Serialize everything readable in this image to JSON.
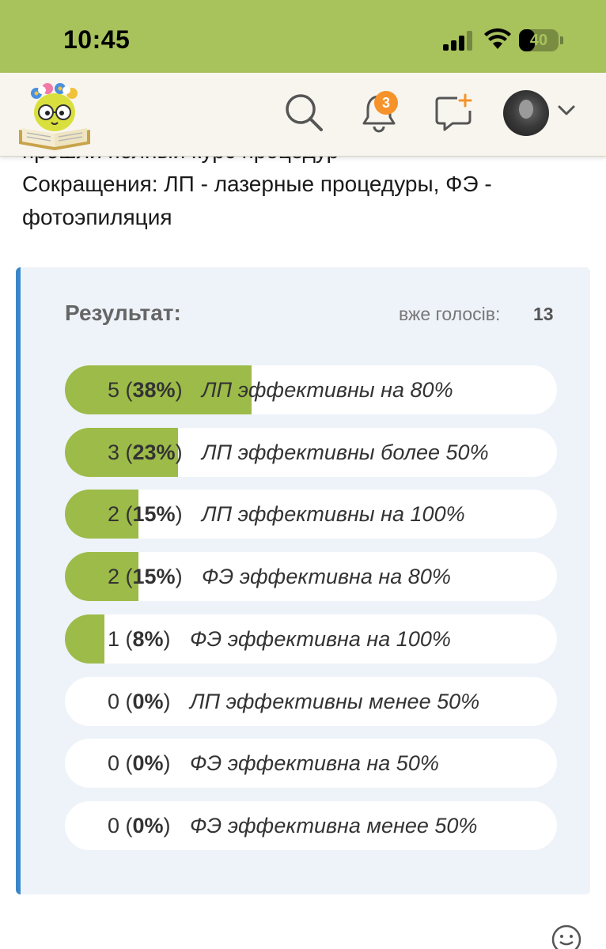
{
  "status_bar": {
    "time": "10:45",
    "battery": "40",
    "battery_level": 0.4
  },
  "nav": {
    "logo": "site-logo-owl-reading-book",
    "icons": [
      "search-icon",
      "bell-icon",
      "chat-add-icon",
      "chevron-down-icon"
    ],
    "notification_count": "3"
  },
  "intro": {
    "line1": "прошли полный курс процедур",
    "line2": "Сокращения: ЛП - лазерные процедуры, ФЭ -",
    "line3": "фотоэпиляция"
  },
  "poll": {
    "title": "Результат:",
    "votes_label": "вже голосів:",
    "votes_count": "13",
    "options": [
      {
        "count": "5",
        "percent": "38%",
        "label": "ЛП эффективны на 80%",
        "fraction": 0.38
      },
      {
        "count": "3",
        "percent": "23%",
        "label": "ЛП эффективны более 50%",
        "fraction": 0.23
      },
      {
        "count": "2",
        "percent": "15%",
        "label": "ЛП эффективны на 100%",
        "fraction": 0.15
      },
      {
        "count": "2",
        "percent": "15%",
        "label": "ФЭ эффективна на 80%",
        "fraction": 0.15
      },
      {
        "count": "1",
        "percent": "8%",
        "label": "ФЭ эффективна на 100%",
        "fraction": 0.08
      },
      {
        "count": "0",
        "percent": "0%",
        "label": "ЛП эффективны менее 50%",
        "fraction": 0
      },
      {
        "count": "0",
        "percent": "0%",
        "label": "ФЭ эффективна на 50%",
        "fraction": 0
      },
      {
        "count": "0",
        "percent": "0%",
        "label": "ФЭ эффективна менее 50%",
        "fraction": 0
      }
    ]
  },
  "colors": {
    "brand_green": "#a8c25c",
    "bar_fill": "#9dbb49",
    "accent_blue": "#3a86c8",
    "badge_orange": "#f5922a"
  }
}
